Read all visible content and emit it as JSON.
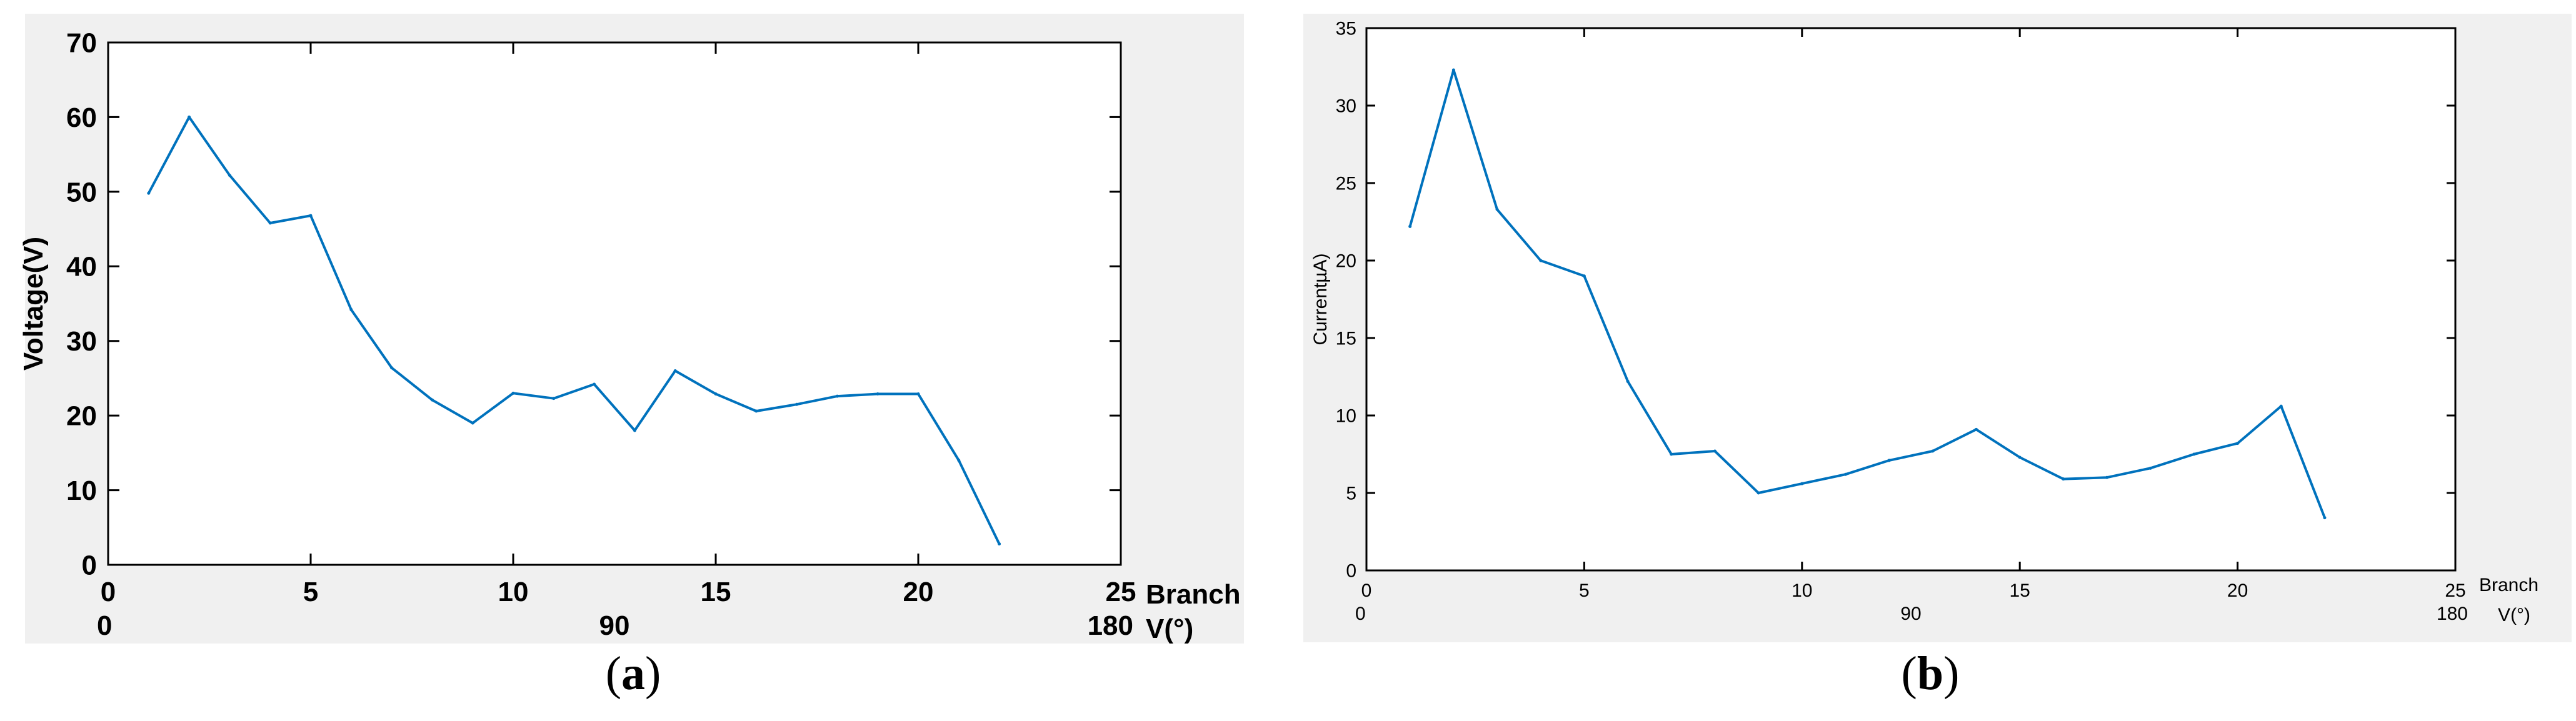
{
  "colors": {
    "line": "#0072bd",
    "axis": "#000000",
    "background": "#f0f0f0"
  },
  "captions": {
    "a": "a",
    "b": "b"
  },
  "chart_data": [
    {
      "type": "line",
      "panel": "a",
      "ylabel": "Voltage(V)",
      "xlim": [
        0,
        25
      ],
      "ylim": [
        0,
        70
      ],
      "xticks": [
        "0",
        "5",
        "10",
        "15",
        "20",
        "25"
      ],
      "yticks": [
        "0",
        "10",
        "20",
        "30",
        "40",
        "50",
        "60",
        "70"
      ],
      "x_end_label": "Branch",
      "secondary_x_labels": [
        "0",
        "90",
        "180"
      ],
      "secondary_x_unit": "V(°)",
      "grid": false,
      "series": [
        {
          "x": [
            1,
            2,
            3,
            4,
            5,
            6,
            7,
            8,
            9,
            10,
            11,
            12,
            13,
            14,
            15,
            16,
            17,
            18,
            19,
            20,
            21,
            22
          ],
          "values": [
            49.8,
            60,
            52.2,
            45.8,
            46.8,
            34.2,
            26.4,
            22.1,
            19,
            23,
            22.3,
            24.2,
            18,
            26,
            22.9,
            20.6,
            21.5,
            22.6,
            22.9,
            22.9,
            14,
            2.8
          ]
        }
      ]
    },
    {
      "type": "line",
      "panel": "b",
      "ylabel": "CurrentµA)",
      "xlim": [
        0,
        25
      ],
      "ylim": [
        0,
        35
      ],
      "xticks": [
        "0",
        "5",
        "10",
        "15",
        "20",
        "25"
      ],
      "yticks": [
        "0",
        "5",
        "10",
        "15",
        "20",
        "25",
        "30",
        "35"
      ],
      "x_end_label": "Branch",
      "secondary_x_labels": [
        "0",
        "90",
        "180"
      ],
      "secondary_x_unit": "V(°)",
      "grid": false,
      "series": [
        {
          "x": [
            1,
            2,
            3,
            4,
            5,
            6,
            7,
            8,
            9,
            10,
            11,
            12,
            13,
            14,
            15,
            16,
            17,
            18,
            19,
            20,
            21,
            22
          ],
          "values": [
            22.2,
            32.3,
            23.3,
            20,
            19,
            12.2,
            7.5,
            7.7,
            5,
            5.6,
            6.2,
            7.1,
            7.7,
            9.1,
            7.3,
            5.9,
            6,
            6.6,
            7.5,
            8.2,
            10.6,
            3.4
          ]
        }
      ]
    }
  ]
}
